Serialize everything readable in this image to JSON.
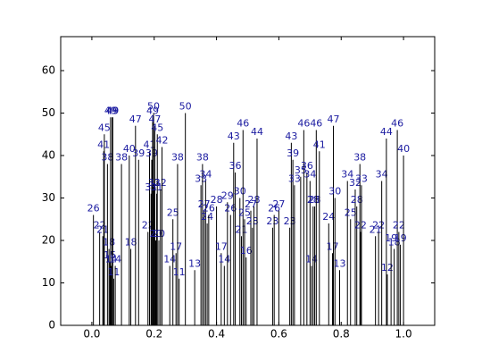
{
  "chart_data": {
    "type": "stem",
    "x": [
      0.005,
      0.025,
      0.035,
      0.038,
      0.04,
      0.05,
      0.055,
      0.058,
      0.06,
      0.062,
      0.065,
      0.067,
      0.07,
      0.075,
      0.095,
      0.12,
      0.125,
      0.14,
      0.15,
      0.18,
      0.185,
      0.19,
      0.192,
      0.195,
      0.198,
      0.2,
      0.202,
      0.205,
      0.208,
      0.21,
      0.215,
      0.22,
      0.225,
      0.25,
      0.26,
      0.27,
      0.275,
      0.28,
      0.3,
      0.33,
      0.35,
      0.355,
      0.36,
      0.365,
      0.37,
      0.375,
      0.4,
      0.415,
      0.425,
      0.435,
      0.445,
      0.455,
      0.46,
      0.475,
      0.48,
      0.485,
      0.49,
      0.495,
      0.51,
      0.515,
      0.52,
      0.53,
      0.58,
      0.585,
      0.6,
      0.635,
      0.64,
      0.645,
      0.65,
      0.67,
      0.68,
      0.69,
      0.7,
      0.705,
      0.71,
      0.715,
      0.72,
      0.73,
      0.76,
      0.772,
      0.775,
      0.78,
      0.795,
      0.82,
      0.83,
      0.845,
      0.85,
      0.86,
      0.862,
      0.865,
      0.91,
      0.92,
      0.93,
      0.945,
      0.948,
      0.96,
      0.97,
      0.98,
      0.985,
      0.99,
      1.0
    ],
    "values": [
      26,
      22,
      21,
      41,
      45,
      38,
      18,
      15,
      49,
      14,
      49,
      49,
      11,
      14,
      38,
      40,
      18,
      47,
      39,
      22,
      41,
      31,
      39,
      49,
      50,
      32,
      47,
      20,
      31,
      45,
      20,
      32,
      42,
      14,
      25,
      17,
      38,
      11,
      50,
      13,
      33,
      38,
      27,
      34,
      24,
      26,
      28,
      17,
      14,
      29,
      26,
      43,
      36,
      30,
      21,
      46,
      25,
      16,
      27,
      23,
      28,
      44,
      23,
      26,
      27,
      23,
      43,
      39,
      33,
      35,
      46,
      36,
      34,
      14,
      28,
      28,
      46,
      41,
      24,
      17,
      47,
      30,
      13,
      34,
      25,
      32,
      28,
      38,
      22,
      33,
      21,
      22,
      34,
      44,
      12,
      19,
      18,
      46,
      22,
      19,
      40
    ],
    "color": "#000000",
    "label_color": "#1a1aa0",
    "xlim": [
      -0.1,
      1.1
    ],
    "ylim": [
      0,
      68
    ],
    "xticks": [
      {
        "value": 0,
        "label": "0.0"
      },
      0.2,
      0.4,
      0.6,
      0.8,
      {
        "value": 1,
        "label": "1.0"
      }
    ],
    "yticks": [
      0,
      10,
      20,
      30,
      40,
      50,
      60
    ]
  }
}
